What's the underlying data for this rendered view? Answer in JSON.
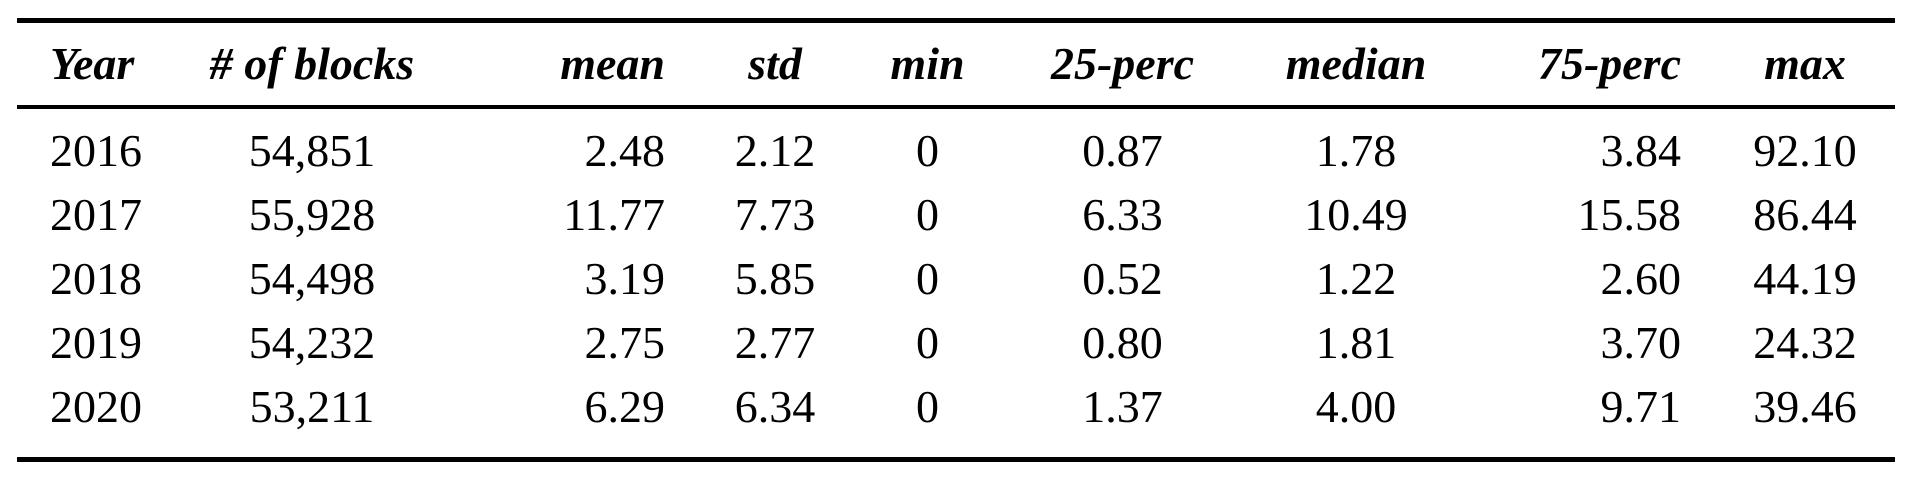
{
  "table": {
    "columns": [
      "Year",
      "# of blocks",
      "mean",
      "std",
      "min",
      "25-perc",
      "median",
      "75-perc",
      "max"
    ],
    "rows": [
      [
        "2016",
        "54,851",
        "2.48",
        "2.12",
        "0",
        "0.87",
        "1.78",
        "3.84",
        "92.10"
      ],
      [
        "2017",
        "55,928",
        "11.77",
        "7.73",
        "0",
        "6.33",
        "10.49",
        "15.58",
        "86.44"
      ],
      [
        "2018",
        "54,498",
        "3.19",
        "5.85",
        "0",
        "0.52",
        "1.22",
        "2.60",
        "44.19"
      ],
      [
        "2019",
        "54,232",
        "2.75",
        "2.77",
        "0",
        "0.80",
        "1.81",
        "3.70",
        "24.32"
      ],
      [
        "2020",
        "53,211",
        "6.29",
        "6.34",
        "0",
        "1.37",
        "4.00",
        "9.71",
        "39.46"
      ]
    ]
  },
  "chart_data": {
    "type": "table",
    "title": "",
    "columns": [
      "Year",
      "# of blocks",
      "mean",
      "std",
      "min",
      "25-perc",
      "median",
      "75-perc",
      "max"
    ],
    "rows": [
      [
        "2016",
        54851,
        2.48,
        2.12,
        0,
        0.87,
        1.78,
        3.84,
        92.1
      ],
      [
        "2017",
        55928,
        11.77,
        7.73,
        0,
        6.33,
        10.49,
        15.58,
        86.44
      ],
      [
        "2018",
        54498,
        3.19,
        5.85,
        0,
        0.52,
        1.22,
        2.6,
        44.19
      ],
      [
        "2019",
        54232,
        2.75,
        2.77,
        0,
        0.8,
        1.81,
        3.7,
        24.32
      ],
      [
        "2020",
        53211,
        6.29,
        6.34,
        0,
        1.37,
        4.0,
        9.71,
        39.46
      ]
    ]
  },
  "colors": {
    "text": "#000000",
    "rule": "#000000",
    "background": "#ffffff"
  }
}
